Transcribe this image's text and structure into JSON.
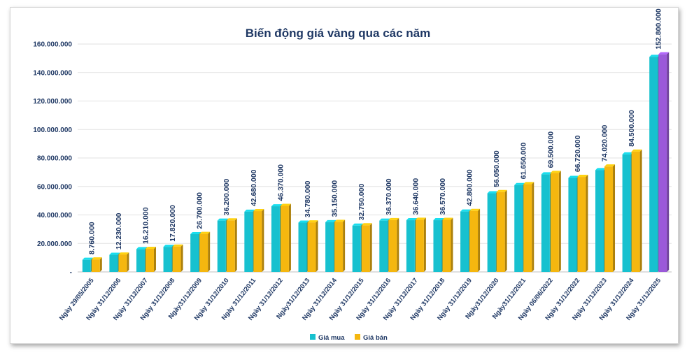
{
  "chart_data": {
    "type": "bar",
    "title": "Biến động giá vàng qua các năm",
    "xlabel": "",
    "ylabel": "",
    "ylim": [
      0,
      160000000
    ],
    "y_ticks": [
      "-",
      "20.000.000",
      "40.000.000",
      "60.000.000",
      "80.000.000",
      "100.000.000",
      "120.000.000",
      "140.000.000",
      "160.000.000"
    ],
    "grid": true,
    "legend_position": "bottom",
    "categories": [
      "Ngày 29/05/2005",
      "Ngày 31/12/2006",
      "Ngày 31/12/2007",
      "Ngày 31/12/2008",
      "Ngày31/12/2009",
      "Ngày 31/12/2010",
      "Ngày 31/12/2011",
      "Ngày 31/12/2012",
      "Ngày31/12/2013",
      "Ngày 31/12/2014",
      "Ngày 31/12/2015",
      "Ngày 31/12/2016",
      "Ngày 31/12/2017",
      "Ngày 31/12/2018",
      "Ngày 31/12/2019",
      "Ngày31/12/2020",
      "Ngày31/12/2021",
      "Ngày 06/06/2022",
      "Ngày 31/12/2022",
      "Ngày 31/12/2023",
      "Ngày 31/12/2024",
      "Ngày 31/12/2025"
    ],
    "series": [
      {
        "name": "Giá mua",
        "color": "#17c1cf",
        "values": [
          8500000,
          12000000,
          16000000,
          17600000,
          26500000,
          36000000,
          42300000,
          46100000,
          34600000,
          34900000,
          32500000,
          36000000,
          36300000,
          36300000,
          42400000,
          55200000,
          61000000,
          68500000,
          66000000,
          71500000,
          82500000,
          151000000
        ]
      },
      {
        "name": "Giá bán",
        "color": "#f5b70f",
        "values": [
          8760000,
          12230000,
          16210000,
          17820000,
          26700000,
          36200000,
          42680000,
          46370000,
          34780000,
          35150000,
          32750000,
          36370000,
          36640000,
          36570000,
          42800000,
          56050000,
          61650000,
          69500000,
          66720000,
          74020000,
          84500000,
          152800000
        ]
      }
    ],
    "data_labels": [
      "8.760.000",
      "12.230.000",
      "16.210.000",
      "17.820.000",
      "26.700.000",
      "36.200.000",
      "42.680.000",
      "46.370.000",
      "34.780.000",
      "35.150.000",
      "32.750.000",
      "36.370.000",
      "36.640.000",
      "36.570.000",
      "42.800.000",
      "56.050.000",
      "61.650.000",
      "69.500.000",
      "66.720.000",
      "74.020.000",
      "84.500.000",
      "152.800.000"
    ],
    "highlight_last_color": "#9b59d9"
  }
}
